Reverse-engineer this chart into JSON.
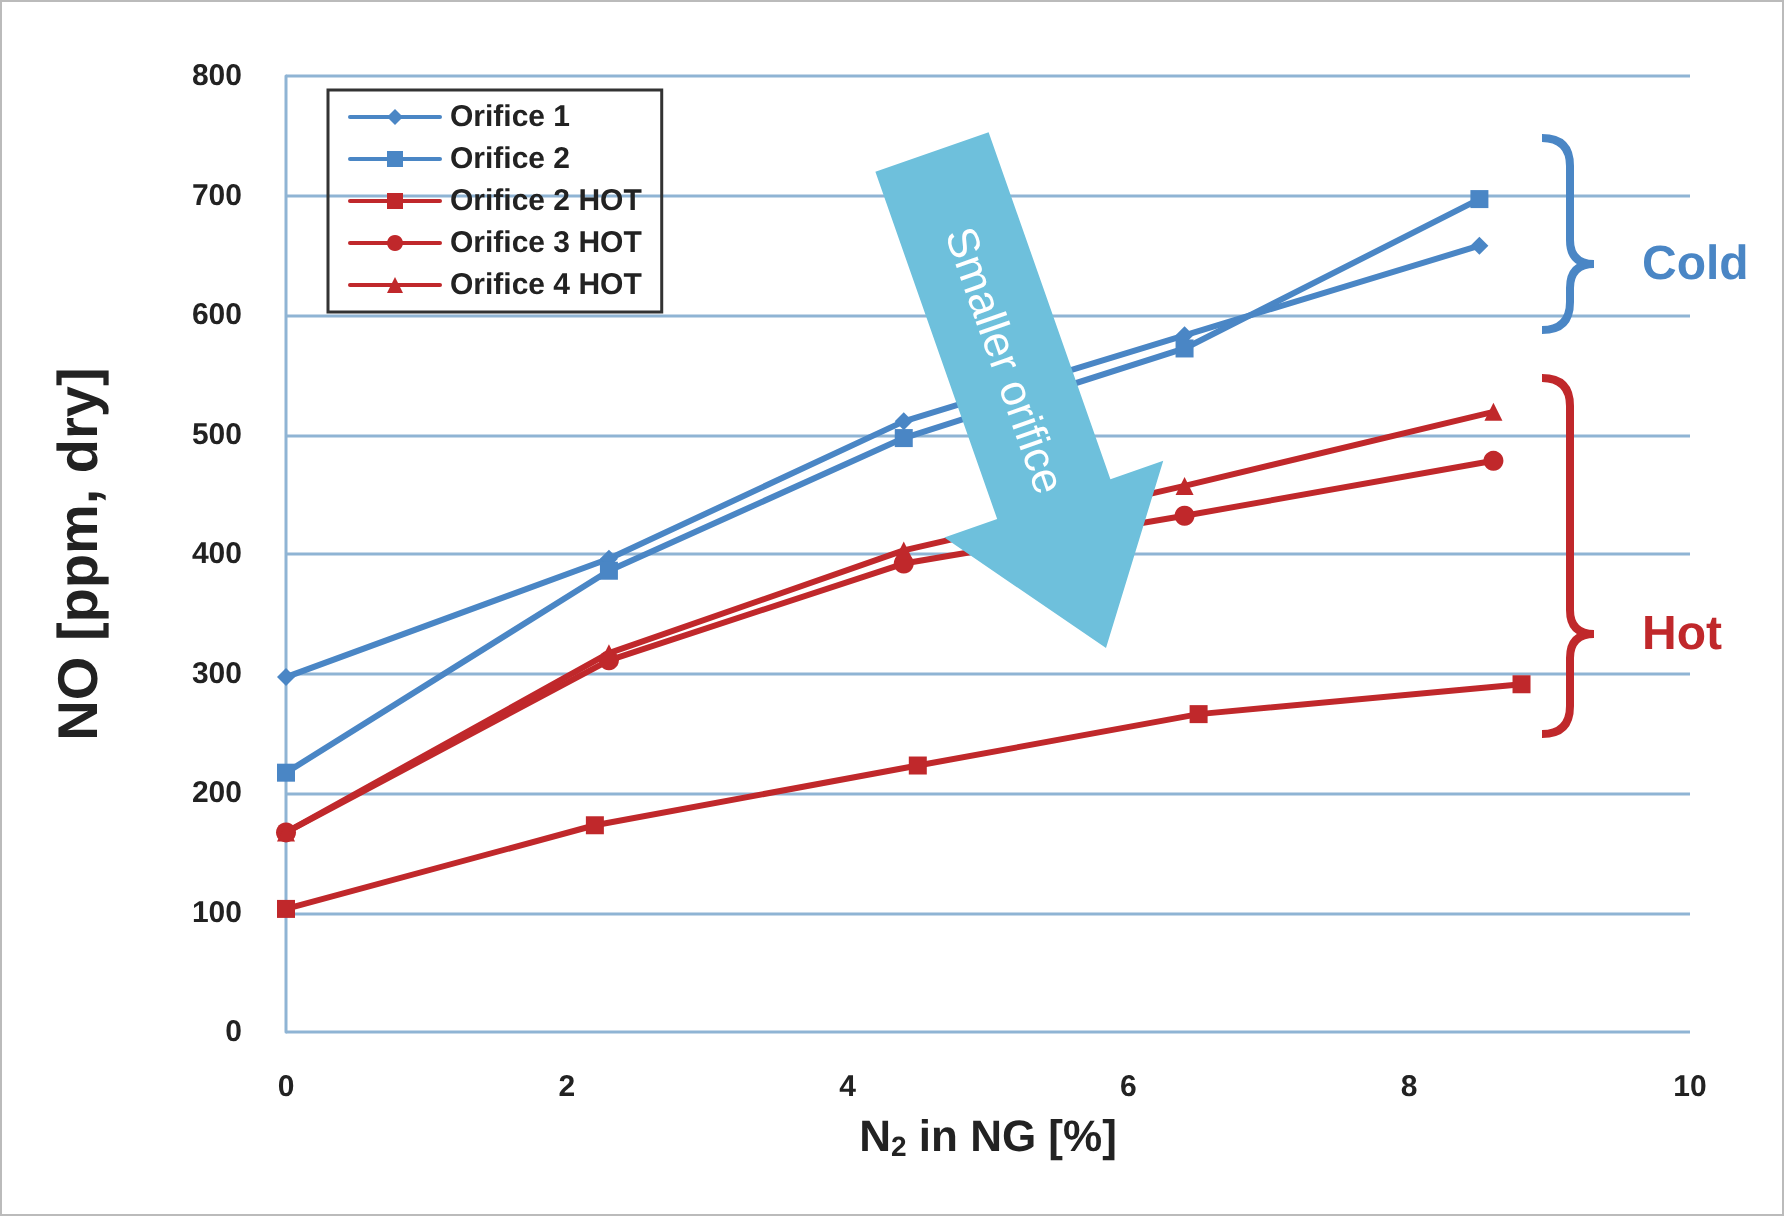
{
  "chart_data": {
    "type": "line",
    "xlabel": "N$_{2}$ in NG [%]",
    "ylabel": "NO [ppm, dry]",
    "xlim": [
      0,
      10
    ],
    "xticks": [
      0,
      2,
      4,
      6,
      8,
      10
    ],
    "ylim": [
      0,
      800
    ],
    "yticks": [
      0,
      100,
      200,
      300,
      400,
      500,
      600,
      700,
      800
    ],
    "grid": "y",
    "legend": "top left",
    "line_style": "solid",
    "series": [
      {
        "name": "Orifice 1",
        "color": "#4a86c5",
        "marker": "diamond",
        "x": [
          0,
          2.3,
          4.4,
          6.4,
          8.5
        ],
        "values": [
          297,
          396,
          511,
          583,
          658
        ]
      },
      {
        "name": "Orifice 2",
        "color": "#4a86c5",
        "marker": "square",
        "x": [
          0,
          2.3,
          4.4,
          6.4,
          8.5
        ],
        "values": [
          217,
          386,
          497,
          572,
          697
        ]
      },
      {
        "name": "Orifice 2 HOT",
        "color": "#c0282b",
        "marker": "square",
        "x": [
          0,
          2.2,
          4.5,
          6.5,
          8.8
        ],
        "values": [
          103,
          173,
          223,
          266,
          291
        ]
      },
      {
        "name": "Orifice 3 HOT",
        "color": "#c0282b",
        "marker": "circle",
        "x": [
          0,
          2.3,
          4.4,
          6.4,
          8.6
        ],
        "values": [
          167,
          311,
          392,
          432,
          478
        ]
      },
      {
        "name": "Orifice 4 HOT",
        "color": "#c0282b",
        "marker": "triangle",
        "x": [
          0,
          2.3,
          4.4,
          6.4,
          8.6
        ],
        "values": [
          167,
          317,
          403,
          457,
          519
        ]
      }
    ],
    "annotations": [
      "Smaller orifice",
      "Cold",
      "Hot"
    ]
  }
}
